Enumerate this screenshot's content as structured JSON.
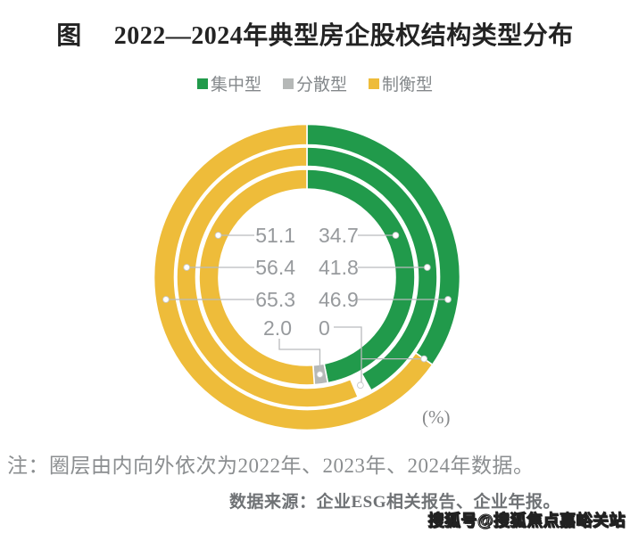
{
  "title": {
    "prefix": "图",
    "text": "2022—2024年典型房企股权结构类型分布"
  },
  "legend": [
    {
      "label": "集中型",
      "color": "#219a4b"
    },
    {
      "label": "分散型",
      "color": "#b5b8b7"
    },
    {
      "label": "制衡型",
      "color": "#eebc3a"
    }
  ],
  "chart_data": {
    "type": "donut",
    "unit": "(%)",
    "categories": [
      "集中型",
      "分散型",
      "制衡型"
    ],
    "rings": [
      {
        "year": "2022",
        "position": "inner",
        "values": [
          46.9,
          2.0,
          51.1
        ],
        "dispersed_render": "solid"
      },
      {
        "year": "2023",
        "position": "middle",
        "values": [
          41.8,
          1.8,
          56.4
        ],
        "dispersed_render": "gap"
      },
      {
        "year": "2024",
        "position": "outer",
        "values": [
          34.7,
          0.0,
          65.3
        ],
        "dispersed_render": "none"
      }
    ],
    "center_rows": [
      {
        "left": "51.1",
        "right": "34.7",
        "ring": 0
      },
      {
        "left": "56.4",
        "right": "41.8",
        "ring": 1
      },
      {
        "left": "65.3",
        "right": "46.9",
        "ring": 2
      },
      {
        "left": "2.0",
        "right": "0"
      }
    ]
  },
  "note": "注：圈层由内向外依次为2022年、2023年、2024年数据。",
  "source": "数据来源：企业ESG相关报告、企业年报。",
  "watermark": "搜狐号@搜狐焦点嘉峪关站"
}
